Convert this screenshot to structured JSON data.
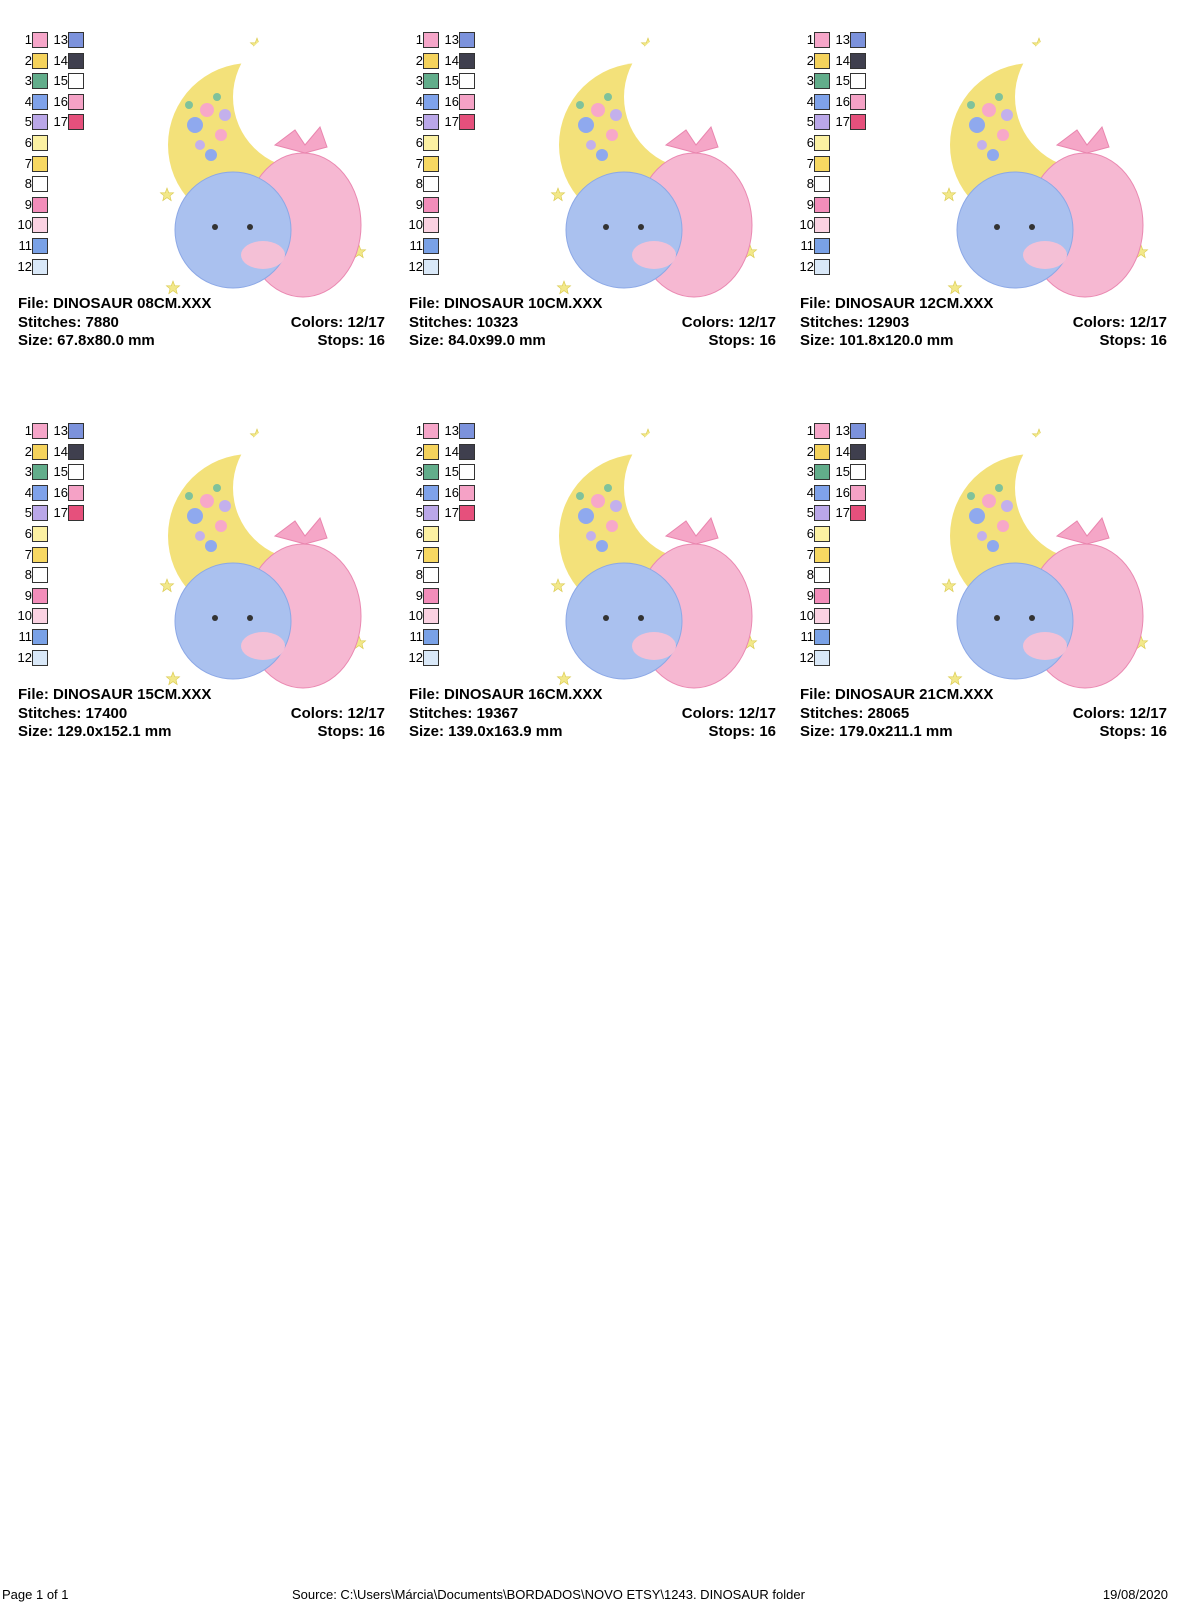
{
  "palette": [
    {
      "number": 1,
      "color": "#f6a6c9"
    },
    {
      "number": 2,
      "color": "#f5d35c"
    },
    {
      "number": 3,
      "color": "#62ad8b"
    },
    {
      "number": 4,
      "color": "#7fa2ea"
    },
    {
      "number": 5,
      "color": "#baa7e8"
    },
    {
      "number": 6,
      "color": "#fcf1a2"
    },
    {
      "number": 7,
      "color": "#f7d862"
    },
    {
      "number": 8,
      "color": "#ffffff"
    },
    {
      "number": 9,
      "color": "#f38dba"
    },
    {
      "number": 10,
      "color": "#fbd2e2"
    },
    {
      "number": 11,
      "color": "#79a1e6"
    },
    {
      "number": 12,
      "color": "#d9e8f8"
    },
    {
      "number": 13,
      "color": "#7c92dc"
    },
    {
      "number": 14,
      "color": "#3f3f4e"
    },
    {
      "number": 15,
      "color": "#ffffff"
    },
    {
      "number": 16,
      "color": "#f5a2c6"
    },
    {
      "number": 17,
      "color": "#e6507c"
    }
  ],
  "designs": [
    {
      "file": "File: DINOSAUR 08CM.XXX",
      "stitches": "Stitches: 7880",
      "colors": "Colors: 12/17",
      "size": "Size: 67.8x80.0 mm",
      "stops": "Stops: 16"
    },
    {
      "file": "File: DINOSAUR 10CM.XXX",
      "stitches": "Stitches: 10323",
      "colors": "Colors: 12/17",
      "size": "Size: 84.0x99.0 mm",
      "stops": "Stops: 16"
    },
    {
      "file": "File: DINOSAUR 12CM.XXX",
      "stitches": "Stitches: 12903",
      "colors": "Colors: 12/17",
      "size": "Size: 101.8x120.0 mm",
      "stops": "Stops: 16"
    },
    {
      "file": "File: DINOSAUR 15CM.XXX",
      "stitches": "Stitches: 17400",
      "colors": "Colors: 12/17",
      "size": "Size: 129.0x152.1 mm",
      "stops": "Stops: 16"
    },
    {
      "file": "File: DINOSAUR 16CM.XXX",
      "stitches": "Stitches: 19367",
      "colors": "Colors: 12/17",
      "size": "Size: 139.0x163.9 mm",
      "stops": "Stops: 16"
    },
    {
      "file": "File: DINOSAUR 21CM.XXX",
      "stitches": "Stitches: 28065",
      "colors": "Colors: 12/17",
      "size": "Size: 179.0x211.1 mm",
      "stops": "Stops: 16"
    }
  ],
  "footer": {
    "page": "Page 1 of 1",
    "source": "Source: C:\\Users\\Márcia\\Documents\\BORDADOS\\NOVO ETSY\\1243. DINOSAUR folder",
    "date": "19/08/2020"
  }
}
